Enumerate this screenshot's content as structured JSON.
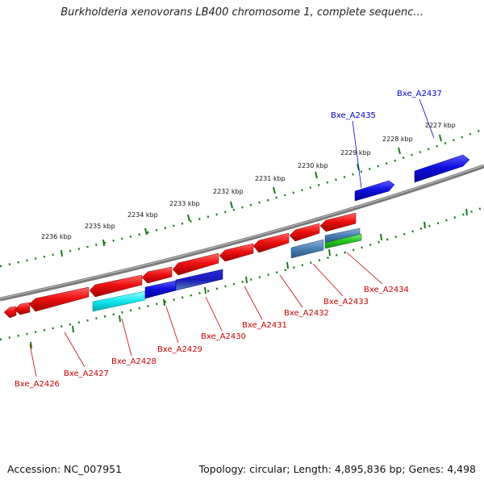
{
  "title": "Burkholderia xenovorans LB400 chromosome 1, complete sequenc...",
  "accession_label": "Accession: NC_007951",
  "summary": "Topology: circular; Length: 4,895,836 bp; Genes: 4,498",
  "colors": {
    "backbone": "#808080",
    "ruler": "#1a7a1a",
    "label_red": "#cc0000",
    "label_blue": "#0000cc"
  },
  "kbp_labels": [
    "2236 kbp",
    "2235 kbp",
    "2234 kbp",
    "2233 kbp",
    "2232 kbp",
    "2231 kbp",
    "2230 kbp",
    "2229 kbp",
    "2228 kbp",
    "2227 kbp"
  ],
  "gene_labels": [
    {
      "text": "Bxe_A2426",
      "color": "red"
    },
    {
      "text": "Bxe_A2427",
      "color": "red"
    },
    {
      "text": "Bxe_A2428",
      "color": "red"
    },
    {
      "text": "Bxe_A2429",
      "color": "red"
    },
    {
      "text": "Bxe_A2430",
      "color": "red"
    },
    {
      "text": "Bxe_A2431",
      "color": "red"
    },
    {
      "text": "Bxe_A2432",
      "color": "red"
    },
    {
      "text": "Bxe_A2433",
      "color": "red"
    },
    {
      "text": "Bxe_A2434",
      "color": "red"
    },
    {
      "text": "Bxe_A2435",
      "color": "blue"
    },
    {
      "text": "Bxe_A2437",
      "color": "blue"
    }
  ]
}
